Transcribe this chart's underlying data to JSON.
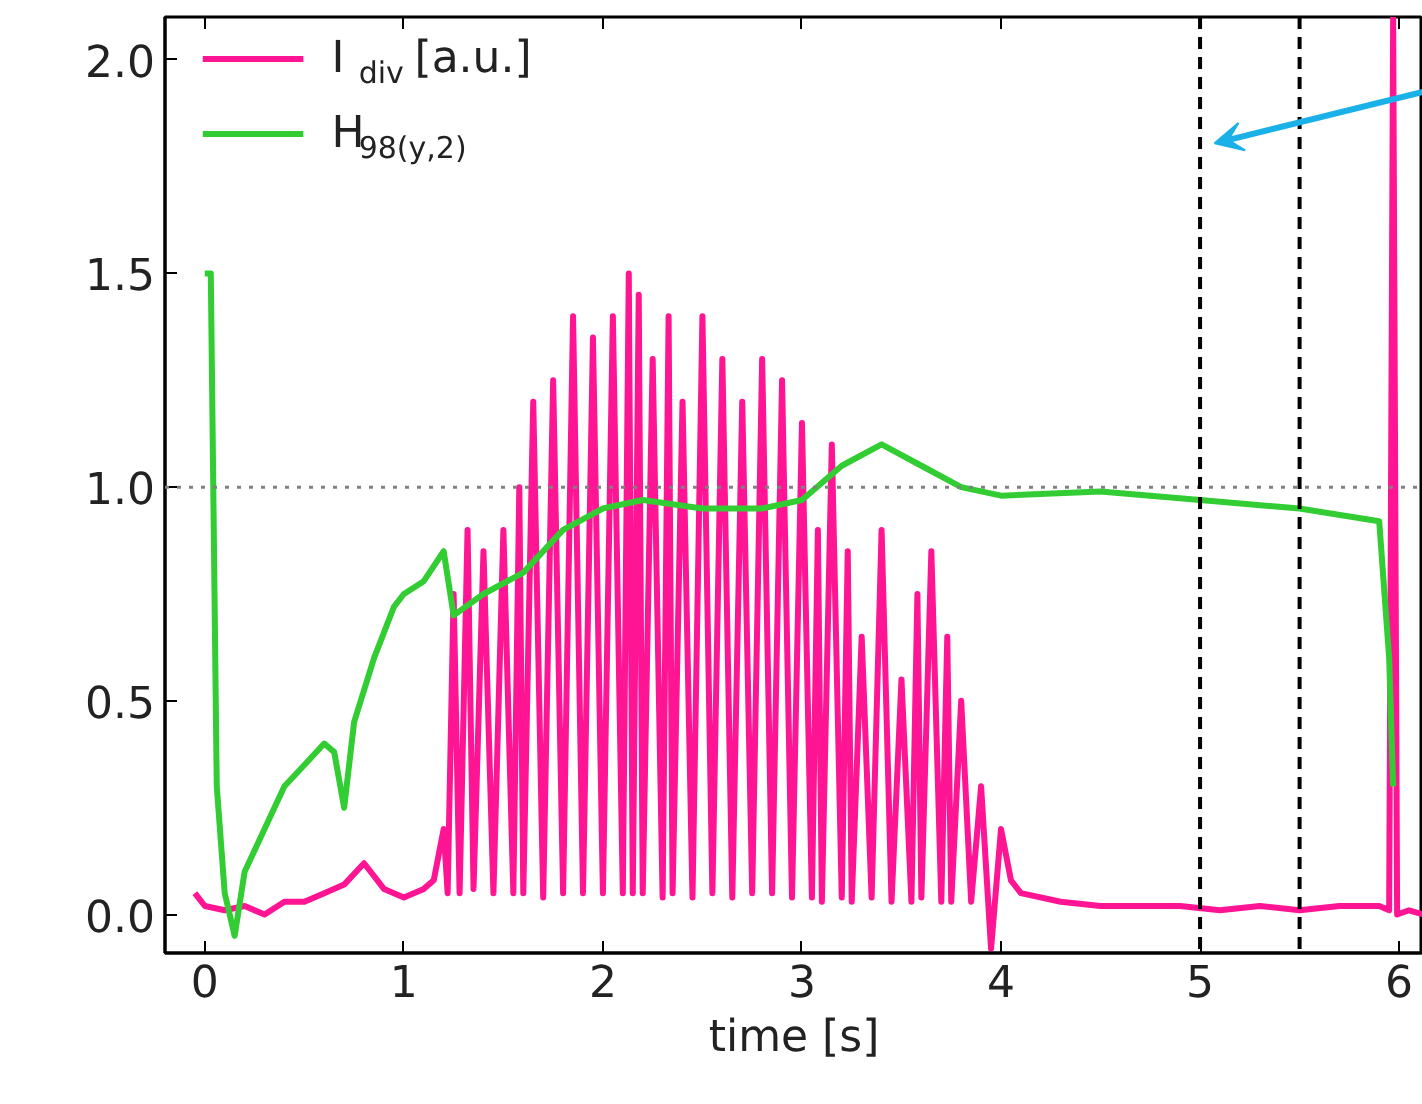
{
  "chart_data": {
    "type": "line",
    "xlabel": "time [s]",
    "xlim": [
      -0.2,
      6.12
    ],
    "ylim": [
      -0.09,
      2.1
    ],
    "xticks": [
      0,
      1,
      2,
      3,
      4,
      5,
      6
    ],
    "yticks": [
      {
        "value": 0,
        "label": "0.0"
      },
      {
        "value": 0.5,
        "label": "0.5"
      },
      {
        "value": 1,
        "label": "1.0"
      },
      {
        "value": 1.5,
        "label": "1.5"
      },
      {
        "value": 2,
        "label": "2.0"
      }
    ],
    "grid": false,
    "legend": "top left",
    "line_style": "solid",
    "marker": "none",
    "series": [
      {
        "name": "I$_{div}$ [a.u.]",
        "color": "#ff1493",
        "x": [
          -0.05,
          0.0,
          0.1,
          0.2,
          0.3,
          0.4,
          0.5,
          0.6,
          0.7,
          0.8,
          0.9,
          1.0,
          1.1,
          1.15,
          1.2,
          1.22,
          1.25,
          1.28,
          1.32,
          1.35,
          1.4,
          1.45,
          1.5,
          1.55,
          1.58,
          1.6,
          1.65,
          1.7,
          1.75,
          1.8,
          1.85,
          1.9,
          1.95,
          2.0,
          2.05,
          2.1,
          2.13,
          2.15,
          2.18,
          2.2,
          2.25,
          2.3,
          2.33,
          2.35,
          2.4,
          2.45,
          2.5,
          2.55,
          2.6,
          2.65,
          2.7,
          2.75,
          2.8,
          2.85,
          2.9,
          2.95,
          3.0,
          3.05,
          3.08,
          3.1,
          3.15,
          3.2,
          3.23,
          3.25,
          3.3,
          3.35,
          3.4,
          3.45,
          3.5,
          3.55,
          3.58,
          3.6,
          3.65,
          3.7,
          3.73,
          3.75,
          3.8,
          3.85,
          3.9,
          3.95,
          4.0,
          4.05,
          4.1,
          4.3,
          4.5,
          4.7,
          4.9,
          5.1,
          5.3,
          5.5,
          5.7,
          5.9,
          5.95,
          5.97,
          5.99,
          6.05,
          6.12
        ],
        "values": [
          0.05,
          0.02,
          0.01,
          0.02,
          0.0,
          0.03,
          0.03,
          0.05,
          0.07,
          0.12,
          0.06,
          0.04,
          0.06,
          0.08,
          0.2,
          0.05,
          0.75,
          0.05,
          0.9,
          0.06,
          0.85,
          0.05,
          0.9,
          0.05,
          1.0,
          0.05,
          1.2,
          0.04,
          1.25,
          0.05,
          1.4,
          0.05,
          1.35,
          0.05,
          1.4,
          0.05,
          1.5,
          0.05,
          1.45,
          0.05,
          1.3,
          0.04,
          1.4,
          0.05,
          1.2,
          0.04,
          1.4,
          0.05,
          1.3,
          0.04,
          1.2,
          0.05,
          1.3,
          0.05,
          1.25,
          0.04,
          1.15,
          0.04,
          0.9,
          0.03,
          1.1,
          0.04,
          0.85,
          0.03,
          0.65,
          0.04,
          0.9,
          0.03,
          0.55,
          0.03,
          0.75,
          0.04,
          0.85,
          0.03,
          0.65,
          0.03,
          0.5,
          0.03,
          0.3,
          -0.08,
          0.2,
          0.08,
          0.05,
          0.03,
          0.02,
          0.02,
          0.02,
          0.01,
          0.02,
          0.01,
          0.02,
          0.02,
          0.01,
          2.1,
          0.0,
          0.01,
          0.0
        ]
      },
      {
        "name": "H$_{98(y,2)}$",
        "color": "#32cd32",
        "x": [
          0.0,
          0.03,
          0.06,
          0.1,
          0.15,
          0.2,
          0.3,
          0.4,
          0.5,
          0.6,
          0.65,
          0.7,
          0.75,
          0.85,
          0.95,
          1.0,
          1.1,
          1.2,
          1.25,
          1.4,
          1.6,
          1.8,
          2.0,
          2.2,
          2.5,
          2.8,
          3.0,
          3.2,
          3.4,
          3.6,
          3.8,
          4.0,
          4.5,
          5.0,
          5.5,
          5.9,
          5.95,
          5.97
        ],
        "values": [
          1.5,
          1.5,
          0.3,
          0.05,
          -0.05,
          0.1,
          0.2,
          0.3,
          0.35,
          0.4,
          0.38,
          0.25,
          0.45,
          0.6,
          0.72,
          0.75,
          0.78,
          0.85,
          0.7,
          0.75,
          0.8,
          0.9,
          0.95,
          0.97,
          0.95,
          0.95,
          0.97,
          1.05,
          1.1,
          1.05,
          1.0,
          0.98,
          0.99,
          0.97,
          0.95,
          0.92,
          0.6,
          0.3
        ]
      }
    ],
    "ref_lines": [
      {
        "axis": "y",
        "value": 1,
        "color": "#808080",
        "line_style": "dotted"
      },
      {
        "axis": "x",
        "value": 5,
        "color": "#000000",
        "line_style": "dashed"
      },
      {
        "axis": "x",
        "value": 5.5,
        "color": "#000000",
        "line_style": "dashed"
      }
    ]
  }
}
